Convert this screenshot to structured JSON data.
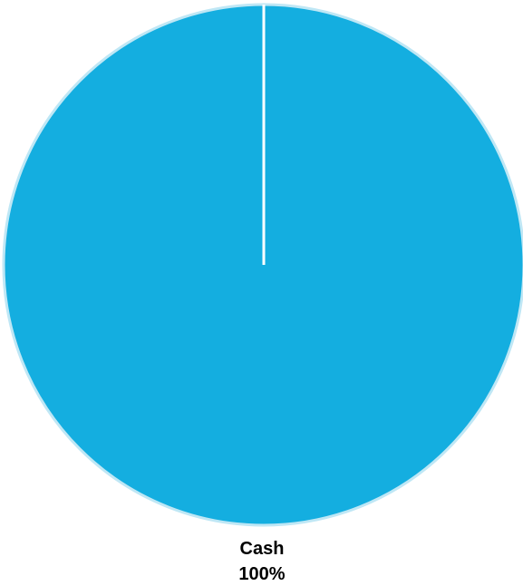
{
  "chart_data": {
    "type": "pie",
    "categories": [
      "Cash"
    ],
    "values": [
      100
    ],
    "data_labels": [
      {
        "name": "Cash",
        "percent": "100%"
      }
    ],
    "title": "",
    "colors": {
      "slice": "#14aee0",
      "slice_border": "#bfe7f5",
      "background": "#ffffff"
    },
    "legend": "none",
    "start_angle_deg": 90,
    "direction": "clockwise"
  }
}
